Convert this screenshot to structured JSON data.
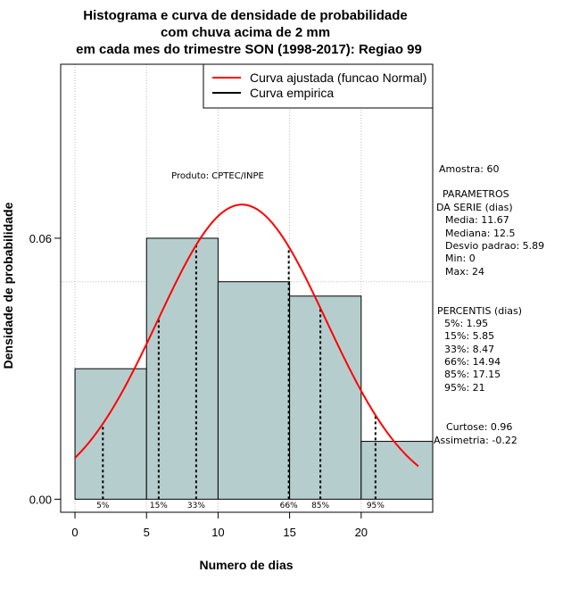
{
  "chart_data": {
    "type": "histogram",
    "title": [
      "Histograma e curva de densidade de probabilidade",
      "com chuva acima de 2 mm",
      "em cada mes do trimestre SON (1998-2017): Regiao 99"
    ],
    "xlabel": "Numero de dias",
    "ylabel": "Densidade de probabilidade",
    "xlim": [
      -1,
      25
    ],
    "ylim": [
      -0.003,
      0.1
    ],
    "x_ticks": [
      "0",
      "5",
      "10",
      "15",
      "20"
    ],
    "x_tick_values": [
      0,
      5,
      10,
      15,
      20
    ],
    "y_ticks": [
      "0.00",
      "0.06"
    ],
    "y_tick_values": [
      0.0,
      0.06
    ],
    "bins": [
      {
        "x0": 0,
        "x1": 5,
        "density": 0.03
      },
      {
        "x0": 5,
        "x1": 10,
        "density": 0.06
      },
      {
        "x0": 10,
        "x1": 15,
        "density": 0.05
      },
      {
        "x0": 15,
        "x1": 20,
        "density": 0.0467
      },
      {
        "x0": 20,
        "x1": 25,
        "density": 0.0133
      }
    ],
    "normal_fit": {
      "mean": 11.67,
      "sd": 5.89,
      "x_range": [
        0,
        24
      ]
    },
    "percentiles": [
      {
        "label": "5%",
        "x": 1.95
      },
      {
        "label": "15%",
        "x": 5.85
      },
      {
        "label": "33%",
        "x": 8.47
      },
      {
        "label": "66%",
        "x": 14.94
      },
      {
        "label": "85%",
        "x": 17.15
      },
      {
        "label": "95%",
        "x": 21
      }
    ],
    "legend": {
      "position": "top-right",
      "entries": [
        {
          "label": "Curva ajustada (funcao Normal)",
          "color": "#ff0000"
        },
        {
          "label": "Curva empirica",
          "color": "#000000"
        }
      ]
    },
    "annotation": "Produto: CPTEC/INPE",
    "colors": {
      "bars": "#b6cdcd",
      "normal": "#ff0000",
      "grid": "#bebebe"
    },
    "side_panel": [
      "Amostra: 60",
      "PARAMETROS",
      "DA SERIE (dias)",
      "Media: 11.67",
      "Mediana: 12.5",
      "Desvio padrao: 5.89",
      "Min: 0",
      "Max: 24",
      "PERCENTIS (dias)",
      "5%: 1.95",
      "15%: 5.85",
      "33%: 8.47",
      "66%: 14.94",
      "85%: 17.15",
      "95%: 21",
      "Curtose: 0.96",
      "Assimetria: -0.22"
    ]
  }
}
